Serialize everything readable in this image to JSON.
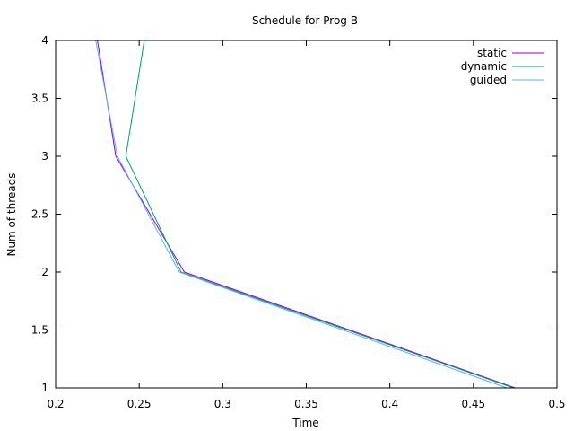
{
  "chart_data": {
    "type": "line",
    "title": "Schedule for Prog B",
    "xlabel": "Time",
    "ylabel": "Num of threads",
    "xlim": [
      0.2,
      0.5
    ],
    "ylim": [
      1,
      4
    ],
    "xticks": [
      "0.2",
      "0.25",
      "0.3",
      "0.35",
      "0.4",
      "0.45",
      "0.5"
    ],
    "yticks": [
      "1",
      "1.5",
      "2",
      "2.5",
      "3",
      "3.5",
      "4"
    ],
    "grid": false,
    "legend_position": "top-right",
    "series": [
      {
        "name": "static",
        "color": "#9400d3",
        "x": [
          0.225,
          0.236,
          0.277,
          0.475
        ],
        "y": [
          4,
          3,
          2,
          1
        ]
      },
      {
        "name": "dynamic",
        "color": "#009e73",
        "x": [
          0.253,
          0.242,
          0.275,
          0.474
        ],
        "y": [
          4,
          3,
          2,
          1
        ]
      },
      {
        "name": "guided",
        "color": "#56b4e9",
        "x": [
          0.224,
          0.237,
          0.274,
          0.47
        ],
        "y": [
          4,
          3,
          2,
          1
        ]
      }
    ]
  }
}
